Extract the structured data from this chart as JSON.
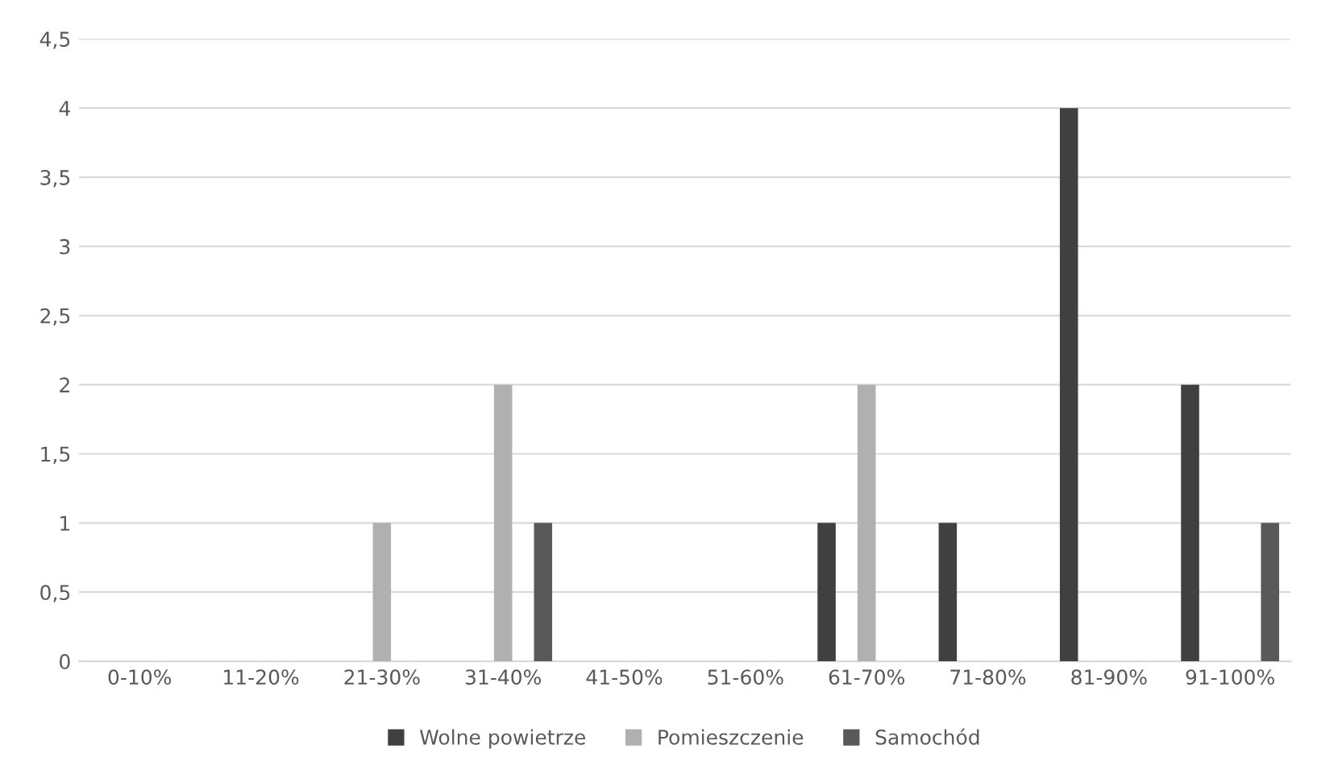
{
  "chart_data": {
    "type": "bar",
    "categories": [
      "0-10%",
      "11-20%",
      "21-30%",
      "31-40%",
      "41-50%",
      "51-60%",
      "61-70%",
      "71-80%",
      "81-90%",
      "91-100%"
    ],
    "series": [
      {
        "name": "Wolne powietrze",
        "color": "#404040",
        "values": [
          0,
          0,
          0,
          0,
          0,
          0,
          1,
          1,
          4,
          2
        ]
      },
      {
        "name": "Pomieszczenie",
        "color": "#b0b0b0",
        "values": [
          0,
          0,
          1,
          2,
          0,
          0,
          2,
          0,
          0,
          0
        ]
      },
      {
        "name": "Samochód",
        "color": "#595959",
        "values": [
          0,
          0,
          0,
          1,
          0,
          0,
          0,
          0,
          0,
          1
        ]
      }
    ],
    "ylim": [
      0,
      4.5
    ],
    "yticks": [
      0,
      {
        "value": 0.5,
        "label": "0,5"
      },
      1,
      {
        "value": 1.5,
        "label": "1,5"
      },
      2,
      {
        "value": 2.5,
        "label": "2,5"
      },
      3,
      {
        "value": 3.5,
        "label": "3,5"
      },
      4,
      {
        "value": 4.5,
        "label": "4,5"
      }
    ],
    "grid": "y",
    "legend": "bottom"
  }
}
